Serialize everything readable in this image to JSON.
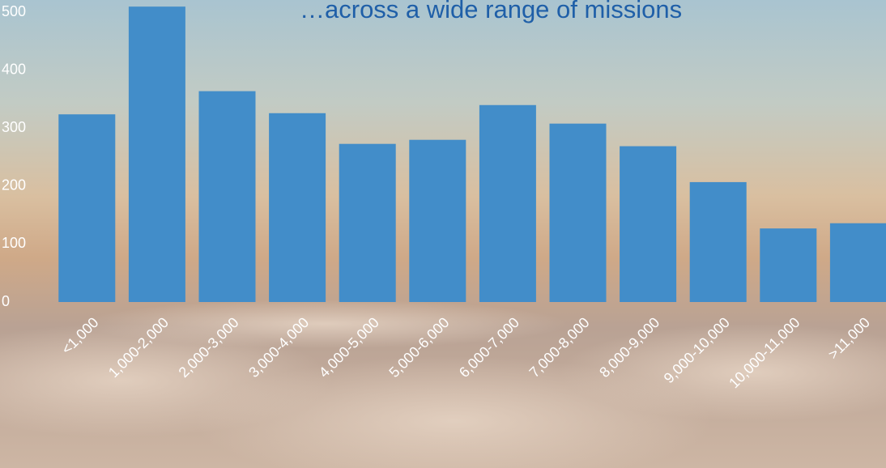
{
  "chart_data": {
    "type": "bar",
    "title": "…across a wide range of missions",
    "categories": [
      "<1,000",
      "1,000-2,000",
      "2,000-3,000",
      "3,000-4,000",
      "4,000-5,000",
      "5,000-6,000",
      "6,000-7,000",
      "7,000-8,000",
      "8,000-9,000",
      "9,000-10,000",
      "10,000-11,000",
      ">11,000"
    ],
    "values": [
      324,
      510,
      364,
      326,
      273,
      280,
      340,
      308,
      269,
      207,
      127,
      136
    ],
    "color": "#428dc9",
    "ylim": [
      0,
      520
    ],
    "yticks": [
      0,
      100,
      200,
      300,
      400,
      500
    ],
    "grid": false
  }
}
